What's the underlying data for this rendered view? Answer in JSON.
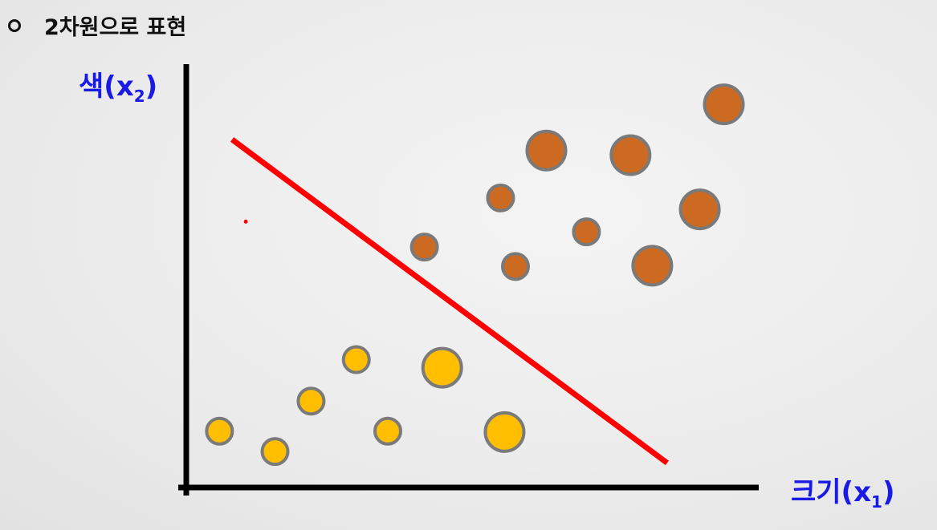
{
  "header": {
    "title": "2차원으로 표현"
  },
  "axes": {
    "y_label_text": "색(x",
    "y_label_sub": "2",
    "y_label_close": ")",
    "x_label_text": "크기(x",
    "x_label_sub": "1",
    "x_label_close": ")"
  },
  "colors": {
    "axis": "#000000",
    "boundary": "#ff0000",
    "class_a_fill": "#cc6a22",
    "class_b_fill": "#ffbe00",
    "point_stroke": "#7a7a7a",
    "label": "#1a1ae6"
  },
  "chart_data": {
    "type": "scatter",
    "xlim": [
      0,
      100
    ],
    "ylim": [
      0,
      100
    ],
    "grid": false,
    "series": [
      {
        "class": "a",
        "points": [
          {
            "x": 93.9,
            "y": 90.5,
            "size": "large"
          },
          {
            "x": 62.9,
            "y": 79.6,
            "size": "large"
          },
          {
            "x": 77.6,
            "y": 78.5,
            "size": "large"
          },
          {
            "x": 54.9,
            "y": 68.4,
            "size": "small"
          },
          {
            "x": 89.7,
            "y": 65.7,
            "size": "large"
          },
          {
            "x": 69.9,
            "y": 60.4,
            "size": "small"
          },
          {
            "x": 41.6,
            "y": 56.8,
            "size": "small"
          },
          {
            "x": 57.5,
            "y": 52.2,
            "size": "small"
          },
          {
            "x": 81.4,
            "y": 52.4,
            "size": "large"
          }
        ]
      },
      {
        "class": "b",
        "points": [
          {
            "x": 29.7,
            "y": 30.2,
            "size": "small"
          },
          {
            "x": 44.7,
            "y": 28.3,
            "size": "large"
          },
          {
            "x": 21.8,
            "y": 20.4,
            "size": "small"
          },
          {
            "x": 5.8,
            "y": 13.3,
            "size": "small"
          },
          {
            "x": 35.2,
            "y": 13.3,
            "size": "small"
          },
          {
            "x": 55.6,
            "y": 13.1,
            "size": "large"
          },
          {
            "x": 15.5,
            "y": 8.5,
            "size": "small"
          }
        ]
      }
    ],
    "boundary": {
      "x": [
        8.0,
        84.0
      ],
      "y": [
        82.2,
        5.8
      ]
    },
    "marker": {
      "x": 10.4,
      "y": 62.8
    }
  }
}
